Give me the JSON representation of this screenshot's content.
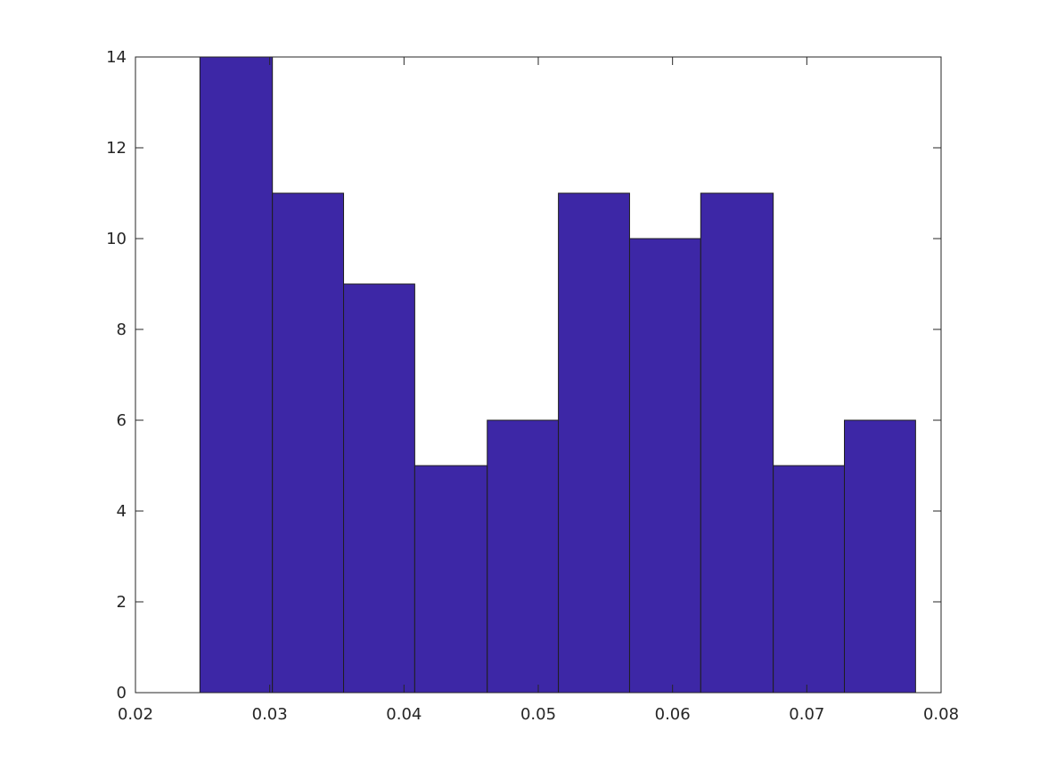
{
  "chart_data": {
    "type": "bar",
    "bin_edges": [
      0.0248,
      0.0302,
      0.0355,
      0.0408,
      0.0462,
      0.0515,
      0.0568,
      0.0621,
      0.0675,
      0.0728,
      0.0781
    ],
    "values": [
      14,
      11,
      9,
      5,
      6,
      11,
      10,
      11,
      5,
      6
    ],
    "xlim": [
      0.02,
      0.08
    ],
    "ylim": [
      0,
      14
    ],
    "xticks": [
      "0.02",
      "0.03",
      "0.04",
      "0.05",
      "0.06",
      "0.07",
      "0.08"
    ],
    "yticks": [
      "0",
      "2",
      "4",
      "6",
      "8",
      "10",
      "12",
      "14"
    ],
    "title": "",
    "xlabel": "",
    "ylabel": "",
    "grid": false,
    "colors": {
      "bar_fill": "#3d27a6",
      "bar_edge": "#1f1f1f",
      "axis": "#262626"
    }
  }
}
